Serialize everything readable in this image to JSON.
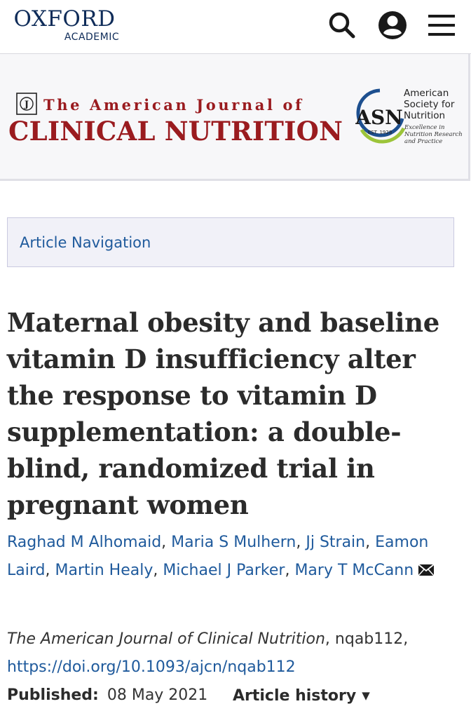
{
  "header": {
    "logo_word": "OXFORD",
    "logo_sub": "ACADEMIC",
    "icons": [
      "search-icon",
      "account-icon",
      "menu-icon"
    ]
  },
  "journal": {
    "title_top": "The American Journal of",
    "title_main": "CLINICAL NUTRITION",
    "brand_color": "#9a1b1f",
    "society": {
      "logo_text": "ASN",
      "est": "EST. 1928",
      "name_lines": [
        "American",
        "Society for",
        "Nutrition"
      ],
      "tagline_lines": [
        "Excellence in",
        "Nutrition Research",
        "and Practice"
      ]
    }
  },
  "nav": {
    "article_navigation_label": "Article Navigation"
  },
  "article": {
    "title": "Maternal obesity and baseline vitamin D insufficiency alter the response to vitamin D supplementation: a double-blind, randomized trial in pregnant women",
    "authors": [
      "Raghad M Alhomaid",
      "Maria S Mulhern",
      "Jj Strain",
      "Eamon Laird",
      "Martin Healy",
      "Michael J Parker",
      "Mary T McCann"
    ],
    "journal_name": "The American Journal of Clinical Nutrition",
    "article_id": ", nqab112,",
    "doi": "https://doi.org/10.1093/ajcn/nqab112",
    "published_label": "Published:",
    "published_date": "08 May 2021",
    "history_label": "Article history",
    "link_color": "#1f5a9c"
  }
}
